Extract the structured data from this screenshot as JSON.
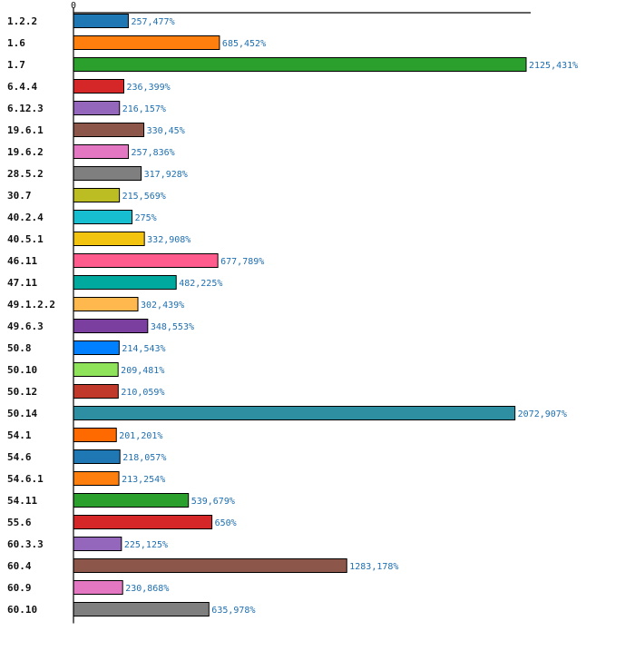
{
  "chart_data": {
    "type": "bar",
    "orientation": "horizontal",
    "categories": [
      "1.2.2",
      "1.6",
      "1.7",
      "6.4.4",
      "6.12.3",
      "19.6.1",
      "19.6.2",
      "28.5.2",
      "30.7",
      "40.2.4",
      "40.5.1",
      "46.11",
      "47.11",
      "49.1.2.2",
      "49.6.3",
      "50.8",
      "50.10",
      "50.12",
      "50.14",
      "54.1",
      "54.6",
      "54.6.1",
      "54.11",
      "55.6",
      "60.3.3",
      "60.4",
      "60.9",
      "60.10"
    ],
    "values": [
      257.477,
      685.452,
      2125.431,
      236.399,
      216.157,
      330.45,
      257.836,
      317.928,
      215.569,
      275,
      332.908,
      677.789,
      482.225,
      302.439,
      348.553,
      214.543,
      209.481,
      210.059,
      2072.907,
      201.201,
      218.057,
      213.254,
      539.679,
      650,
      225.125,
      1283.178,
      230.868,
      635.978
    ],
    "value_labels": [
      "257,477%",
      "685,452%",
      "2125,431%",
      "236,399%",
      "216,157%",
      "330,45%",
      "257,836%",
      "317,928%",
      "215,569%",
      "275%",
      "332,908%",
      "677,789%",
      "482,225%",
      "302,439%",
      "348,553%",
      "214,543%",
      "209,481%",
      "210,059%",
      "2072,907%",
      "201,201%",
      "218,057%",
      "213,254%",
      "539,679%",
      "650%",
      "225,125%",
      "1283,178%",
      "230,868%",
      "635,978%"
    ],
    "colors": [
      "#1f77b4",
      "#ff7f0e",
      "#2ca02c",
      "#d62728",
      "#9467bd",
      "#8c564b",
      "#e377c2",
      "#7f7f7f",
      "#bcbd22",
      "#17becf",
      "#f2c40f",
      "#ff5c8d",
      "#00a99d",
      "#ffb84d",
      "#7b3fa0",
      "#0080ff",
      "#8fe35a",
      "#c0392b",
      "#2e8fa3",
      "#ff6a00",
      "#1f77b4",
      "#ff7f0e",
      "#2ca02c",
      "#d62728",
      "#9467bd",
      "#8c564b",
      "#e377c2",
      "#7f7f7f"
    ],
    "x_ticks": [
      "0"
    ],
    "xlim": [
      0,
      2150
    ],
    "title": "",
    "xlabel": "",
    "ylabel": "",
    "grid": false,
    "legend": "none"
  }
}
